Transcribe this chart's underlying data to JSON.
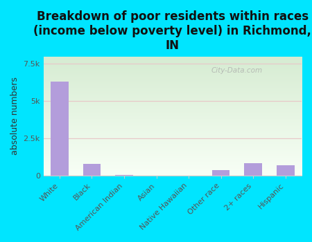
{
  "title": "Breakdown of poor residents within races\n(income below poverty level) in Richmond,\nIN",
  "categories": [
    "White",
    "Black",
    "American Indian",
    "Asian",
    "Native Hawaiian",
    "Other race",
    "2+ races",
    "Hispanic"
  ],
  "values": [
    6300,
    800,
    80,
    20,
    10,
    400,
    850,
    700
  ],
  "bar_color": "#b39ddb",
  "background_color": "#00e5ff",
  "plot_bg_color_top": "#d6ecd2",
  "plot_bg_color_bottom": "#f8fff6",
  "ylabel": "absolute numbers",
  "ylim": [
    0,
    8000
  ],
  "yticks": [
    0,
    2500,
    5000,
    7500
  ],
  "ytick_labels": [
    "0",
    "2.5k",
    "5k",
    "7.5k"
  ],
  "watermark": "City-Data.com",
  "title_fontsize": 12,
  "tick_fontsize": 8,
  "ylabel_fontsize": 9,
  "grid_color": "#e8c8c8",
  "spine_color": "#cccccc"
}
